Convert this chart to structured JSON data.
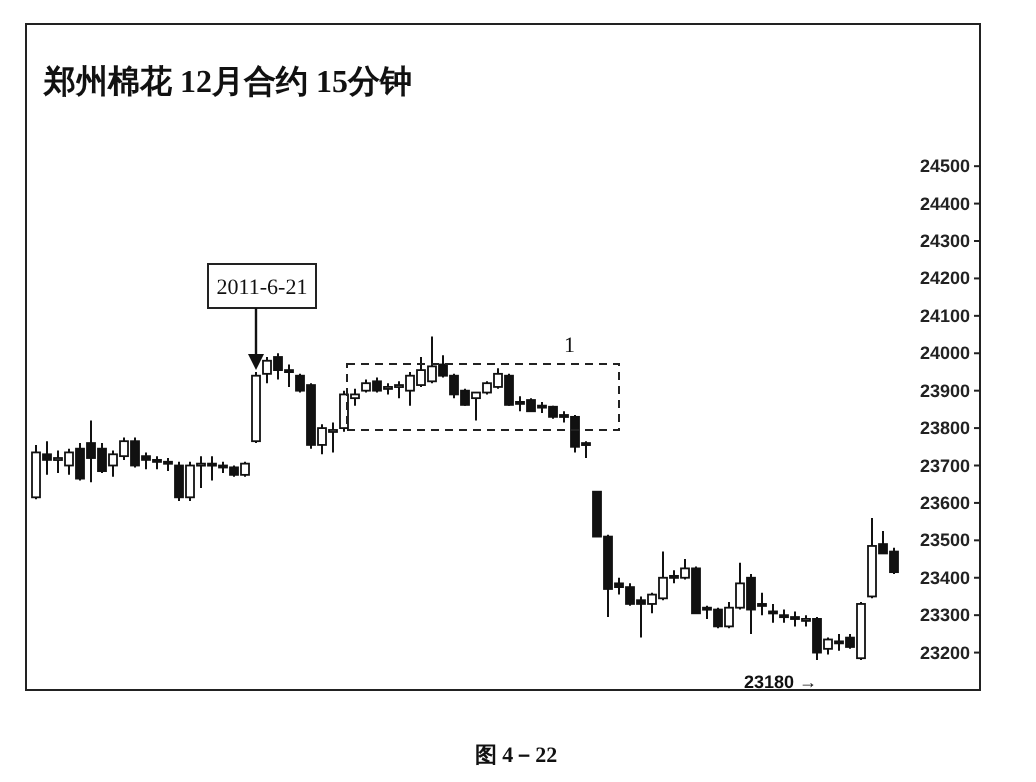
{
  "chart_data": {
    "type": "candlestick",
    "title": "郑州棉花  12月合约  15分钟",
    "categories": [
      null,
      null,
      null,
      null,
      null,
      null,
      null,
      null,
      null,
      null,
      null,
      null,
      null,
      null,
      null,
      null,
      null,
      null,
      null,
      null,
      null,
      null,
      null,
      null,
      null,
      null,
      null,
      null,
      null,
      null,
      null,
      null,
      null,
      null,
      null,
      null,
      null,
      null,
      null,
      null,
      null,
      null,
      null,
      null,
      null,
      null,
      null,
      null,
      null,
      null,
      null,
      null,
      null,
      null,
      null,
      null,
      null,
      null,
      null,
      null,
      null,
      null,
      null,
      null,
      null,
      null,
      null,
      null,
      null,
      null,
      null,
      null,
      null,
      null,
      null,
      null,
      null,
      null,
      null
    ],
    "ohlc": [
      [
        23615,
        23755,
        23610,
        23735
      ],
      [
        23730,
        23765,
        23675,
        23715
      ],
      [
        23715,
        23740,
        23680,
        23720
      ],
      [
        23700,
        23745,
        23675,
        23735
      ],
      [
        23745,
        23760,
        23660,
        23665
      ],
      [
        23760,
        23820,
        23655,
        23720
      ],
      [
        23745,
        23760,
        23680,
        23685
      ],
      [
        23700,
        23740,
        23670,
        23730
      ],
      [
        23725,
        23775,
        23715,
        23765
      ],
      [
        23765,
        23775,
        23695,
        23700
      ],
      [
        23725,
        23735,
        23690,
        23715
      ],
      [
        23715,
        23725,
        23690,
        23710
      ],
      [
        23710,
        23720,
        23685,
        23705
      ],
      [
        23700,
        23710,
        23605,
        23615
      ],
      [
        23615,
        23710,
        23605,
        23700
      ],
      [
        23700,
        23725,
        23640,
        23705
      ],
      [
        23705,
        23725,
        23660,
        23700
      ],
      [
        23700,
        23710,
        23680,
        23695
      ],
      [
        23695,
        23700,
        23670,
        23675
      ],
      [
        23675,
        23710,
        23670,
        23705
      ],
      [
        23765,
        23950,
        23760,
        23940
      ],
      [
        23945,
        23990,
        23920,
        23980
      ],
      [
        23990,
        24000,
        23930,
        23955
      ],
      [
        23955,
        23970,
        23910,
        23950
      ],
      [
        23940,
        23945,
        23895,
        23900
      ],
      [
        23915,
        23920,
        23745,
        23755
      ],
      [
        23755,
        23810,
        23730,
        23800
      ],
      [
        23790,
        23815,
        23735,
        23795
      ],
      [
        23800,
        23900,
        23790,
        23890
      ],
      [
        23880,
        23905,
        23860,
        23890
      ],
      [
        23900,
        23930,
        23895,
        23920
      ],
      [
        23925,
        23935,
        23895,
        23900
      ],
      [
        23905,
        23920,
        23890,
        23910
      ],
      [
        23910,
        23925,
        23880,
        23915
      ],
      [
        23900,
        23950,
        23860,
        23940
      ],
      [
        23915,
        23990,
        23910,
        23955
      ],
      [
        23925,
        24045,
        23920,
        23965
      ],
      [
        23970,
        23995,
        23935,
        23940
      ],
      [
        23940,
        23945,
        23880,
        23890
      ],
      [
        23900,
        23905,
        23860,
        23862
      ],
      [
        23880,
        23895,
        23820,
        23895
      ],
      [
        23895,
        23925,
        23890,
        23920
      ],
      [
        23910,
        23960,
        23905,
        23945
      ],
      [
        23940,
        23945,
        23860,
        23862
      ],
      [
        23870,
        23885,
        23845,
        23865
      ],
      [
        23875,
        23880,
        23845,
        23845
      ],
      [
        23860,
        23870,
        23840,
        23855
      ],
      [
        23857,
        23860,
        23825,
        23830
      ],
      [
        23835,
        23845,
        23815,
        23830
      ],
      [
        23830,
        23835,
        23735,
        23750
      ],
      [
        23760,
        23765,
        23720,
        23755
      ],
      [
        23630,
        23630,
        23510,
        23510
      ],
      [
        23510,
        23515,
        23295,
        23370
      ],
      [
        23385,
        23400,
        23355,
        23375
      ],
      [
        23375,
        23385,
        23325,
        23330
      ],
      [
        23340,
        23350,
        23240,
        23330
      ],
      [
        23330,
        23360,
        23305,
        23355
      ],
      [
        23345,
        23470,
        23340,
        23400
      ],
      [
        23405,
        23420,
        23385,
        23400
      ],
      [
        23400,
        23450,
        23395,
        23425
      ],
      [
        23425,
        23430,
        23305,
        23305
      ],
      [
        23320,
        23325,
        23290,
        23315
      ],
      [
        23315,
        23320,
        23265,
        23270
      ],
      [
        23270,
        23335,
        23265,
        23320
      ],
      [
        23320,
        23440,
        23315,
        23385
      ],
      [
        23400,
        23410,
        23250,
        23315
      ],
      [
        23330,
        23360,
        23300,
        23325
      ],
      [
        23310,
        23330,
        23280,
        23305
      ],
      [
        23300,
        23315,
        23280,
        23295
      ],
      [
        23295,
        23310,
        23270,
        23290
      ],
      [
        23290,
        23300,
        23270,
        23290
      ],
      [
        23290,
        23295,
        23180,
        23200
      ],
      [
        23210,
        23240,
        23195,
        23235
      ],
      [
        23230,
        23250,
        23205,
        23225
      ],
      [
        23240,
        23250,
        23210,
        23215
      ],
      [
        23185,
        23335,
        23180,
        23330
      ],
      [
        23350,
        23560,
        23345,
        23485
      ],
      [
        23490,
        23525,
        23465,
        23465
      ],
      [
        23470,
        23480,
        23410,
        23415
      ]
    ],
    "ylim": [
      23100,
      24880
    ],
    "yticks": [
      23200,
      23300,
      23400,
      23500,
      23600,
      23700,
      23800,
      23900,
      24000,
      24100,
      24200,
      24300,
      24400,
      24500
    ],
    "annotations": [
      "2011-6-21",
      "1",
      "23180 →",
      "图 4－22"
    ]
  }
}
